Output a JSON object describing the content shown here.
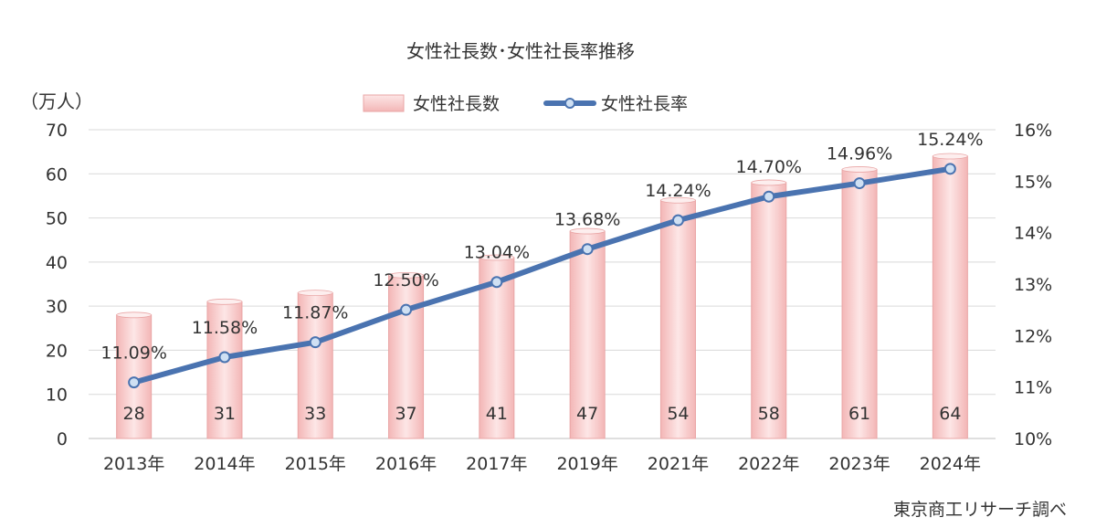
{
  "chart_data": {
    "type": "bar",
    "title": "女性社長数･女性社長率推移",
    "y_left_unit": "（万人）",
    "categories": [
      "2013年",
      "2014年",
      "2015年",
      "2016年",
      "2017年",
      "2019年",
      "2021年",
      "2022年",
      "2023年",
      "2024年"
    ],
    "series": [
      {
        "name": "女性社長数",
        "type": "bar",
        "axis": "left",
        "values": [
          28,
          31,
          33,
          37,
          41,
          47,
          54,
          58,
          61,
          64
        ],
        "labels": [
          "28",
          "31",
          "33",
          "37",
          "41",
          "47",
          "54",
          "58",
          "61",
          "64"
        ]
      },
      {
        "name": "女性社長率",
        "type": "line",
        "axis": "right",
        "values": [
          11.09,
          11.58,
          11.87,
          12.5,
          13.04,
          13.68,
          14.24,
          14.7,
          14.96,
          15.24
        ],
        "labels": [
          "11.09%",
          "11.58%",
          "11.87%",
          "12.50%",
          "13.04%",
          "13.68%",
          "14.24%",
          "14.70%",
          "14.96%",
          "15.24%"
        ]
      }
    ],
    "y_left": {
      "min": 0,
      "max": 70,
      "step": 10,
      "ticks": [
        "0",
        "10",
        "20",
        "30",
        "40",
        "50",
        "60",
        "70"
      ]
    },
    "y_right": {
      "min": 10,
      "max": 16,
      "step": 1,
      "ticks": [
        "10%",
        "11%",
        "12%",
        "13%",
        "14%",
        "15%",
        "16%"
      ]
    },
    "grid": true,
    "legend_position": "top-center",
    "colors": {
      "bar_fill": "#f8c8c8",
      "bar_edge": "#e9a5a5",
      "line": "#4a73b0",
      "grid": "#d9d9d9",
      "text": "#333333"
    },
    "source": "東京商工リサーチ調べ"
  }
}
